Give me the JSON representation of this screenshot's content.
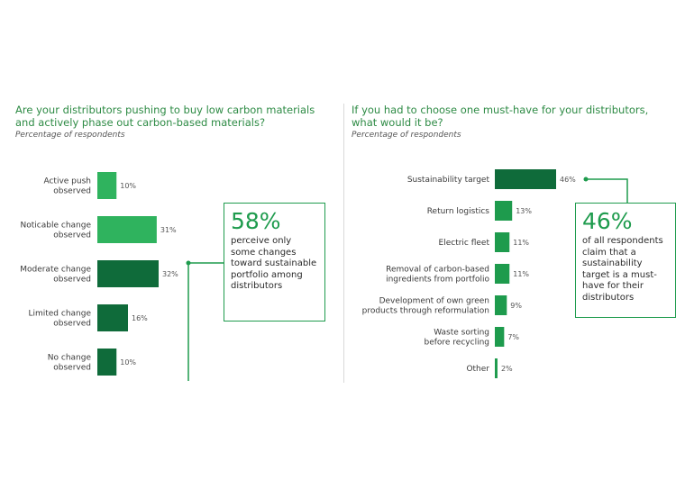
{
  "colors": {
    "dark": "#0f6b3a",
    "mid": "#1e9b4d",
    "light": "#2fb35e",
    "title": "#2e8b45"
  },
  "left": {
    "title_line1": "Are your distributors pushing to buy low carbon materials",
    "title_line2": "and actively phase out carbon-based materials?",
    "subtitle": "Percentage of respondents",
    "callout": {
      "big": "58%",
      "text": "perceive only some changes toward sustainable portfolio among distributors"
    }
  },
  "right": {
    "title_line1": "If you had to choose one must-have for your distributors,",
    "title_line2": "what would it be?",
    "subtitle": "Percentage of respondents",
    "callout": {
      "big": "46%",
      "text": "of all respondents claim that a sustainability target is a must-have for their distributors"
    }
  },
  "chart_data": [
    {
      "type": "bar",
      "orientation": "horizontal",
      "title": "Are your distributors pushing to buy low carbon materials and actively phase out carbon-based materials?",
      "subtitle": "Percentage of respondents",
      "categories": [
        [
          "Active push",
          "observed"
        ],
        [
          "Noticable change",
          "observed"
        ],
        [
          "Moderate change",
          "observed"
        ],
        [
          "Limited change",
          "observed"
        ],
        [
          "No change",
          "observed"
        ]
      ],
      "values": [
        10,
        31,
        32,
        16,
        10
      ],
      "value_labels": [
        "10%",
        "31%",
        "32%",
        "16%",
        "10%"
      ],
      "bar_colors": [
        "#2fb35e",
        "#2fb35e",
        "#0f6b3a",
        "#0f6b3a",
        "#0f6b3a"
      ],
      "unit": "%"
    },
    {
      "type": "bar",
      "orientation": "horizontal",
      "title": "If you had to choose one must-have for your distributors, what would it be?",
      "subtitle": "Percentage of respondents",
      "categories": [
        [
          "Sustainability target"
        ],
        [
          "Return logistics"
        ],
        [
          "Electric fleet"
        ],
        [
          "Removal of carbon-based",
          "ingredients from portfolio"
        ],
        [
          "Development of own green",
          "products through reformulation"
        ],
        [
          "Waste sorting",
          "before recycling"
        ],
        [
          "Other"
        ]
      ],
      "values": [
        46,
        13,
        11,
        11,
        9,
        7,
        2
      ],
      "value_labels": [
        "46%",
        "13%",
        "11%",
        "11%",
        "9%",
        "7%",
        "2%"
      ],
      "bar_colors": [
        "#0f6b3a",
        "#1e9b4d",
        "#1e9b4d",
        "#1e9b4d",
        "#1e9b4d",
        "#1e9b4d",
        "#1e9b4d"
      ],
      "unit": "%"
    }
  ]
}
